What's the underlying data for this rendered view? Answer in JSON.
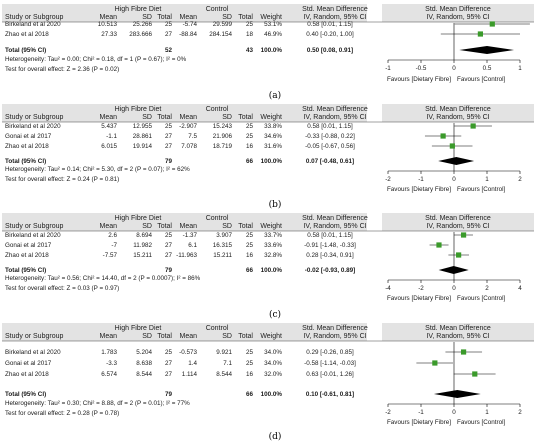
{
  "chart_data": [
    {
      "type": "table",
      "panel_label": "(a)",
      "group_headers": [
        "High Fibre Diet",
        "Control",
        "Std. Mean Difference",
        "Std. Mean Difference"
      ],
      "column_headers": [
        "Study or Subgroup",
        "Mean",
        "SD",
        "Total",
        "Mean",
        "SD",
        "Total",
        "Weight",
        "IV, Random, 95% CI",
        "IV, Random, 95% CI"
      ],
      "studies": [
        {
          "study": "Birkeland et al 2020",
          "mean1": "10.513",
          "sd1": "25.266",
          "n1": "25",
          "mean2": "-5.74",
          "sd2": "29.599",
          "n2": "25",
          "weight": "53.1%",
          "ci_text": "0.58 [0.01, 1.15]",
          "smd": 0.58,
          "lo": 0.01,
          "hi": 1.15
        },
        {
          "study": "Zhao et al 2018",
          "mean1": "27.33",
          "sd1": "283.666",
          "n1": "27",
          "mean2": "-88.84",
          "sd2": "284.154",
          "n2": "18",
          "weight": "46.9%",
          "ci_text": "0.40 [-0.20, 1.00]",
          "smd": 0.4,
          "lo": -0.2,
          "hi": 1.0
        }
      ],
      "total": {
        "label": "Total (95% CI)",
        "n1": "52",
        "n2": "43",
        "weight": "100.0%",
        "ci_text": "0.50 [0.08, 0.91]",
        "smd": 0.5,
        "lo": 0.08,
        "hi": 0.91
      },
      "heterogeneity": "Heterogeneity: Tau² = 0.00; Chi² = 0.18, df = 1 (P = 0.67); I² = 0%",
      "overall_effect": "Test for overall effect: Z = 2.36 (P = 0.02)",
      "xlim": [
        -1,
        1
      ],
      "ticks": [
        -1,
        -0.5,
        0,
        0.5,
        1
      ],
      "tick_labels": [
        "-1",
        "-0.5",
        "0",
        "0.5",
        "1"
      ],
      "favours_left": "Favours [Dietary Fibre]",
      "favours_right": "Favours [Control]"
    },
    {
      "type": "table",
      "panel_label": "(b)",
      "group_headers": [
        "High Fibre Diet",
        "Control",
        "Std. Mean Difference",
        "Std. Mean Difference"
      ],
      "column_headers": [
        "Study or Subgroup",
        "Mean",
        "SD",
        "Total",
        "Mean",
        "SD",
        "Total",
        "Weight",
        "IV, Random, 95% CI",
        "IV, Random, 95% CI"
      ],
      "studies": [
        {
          "study": "Birkeland et al 2020",
          "mean1": "5.437",
          "sd1": "12.955",
          "n1": "25",
          "mean2": "-2.907",
          "sd2": "15.243",
          "n2": "25",
          "weight": "33.8%",
          "ci_text": "0.58 [0.01, 1.15]",
          "smd": 0.58,
          "lo": 0.01,
          "hi": 1.15
        },
        {
          "study": "Gonai et al 2017",
          "mean1": "-1.1",
          "sd1": "28.861",
          "n1": "27",
          "mean2": "7.5",
          "sd2": "21.906",
          "n2": "25",
          "weight": "34.6%",
          "ci_text": "-0.33 [-0.88, 0.22]",
          "smd": -0.33,
          "lo": -0.88,
          "hi": 0.22
        },
        {
          "study": "Zhao et al 2018",
          "mean1": "6.015",
          "sd1": "19.914",
          "n1": "27",
          "mean2": "7.078",
          "sd2": "18.719",
          "n2": "16",
          "weight": "31.6%",
          "ci_text": "-0.05 [-0.67, 0.56]",
          "smd": -0.05,
          "lo": -0.67,
          "hi": 0.56
        }
      ],
      "total": {
        "label": "Total (95% CI)",
        "n1": "79",
        "n2": "66",
        "weight": "100.0%",
        "ci_text": "0.07 [-0.48, 0.61]",
        "smd": 0.07,
        "lo": -0.48,
        "hi": 0.61
      },
      "heterogeneity": "Heterogeneity: Tau² = 0.14; Chi² = 5.30, df = 2 (P = 0.07); I² = 62%",
      "overall_effect": "Test for overall effect: Z = 0.24 (P = 0.81)",
      "xlim": [
        -2,
        2
      ],
      "ticks": [
        -2,
        -1,
        0,
        1,
        2
      ],
      "tick_labels": [
        "-2",
        "-1",
        "0",
        "1",
        "2"
      ],
      "favours_left": "Favours [Dietary Fibre]",
      "favours_right": "Favours [Control]"
    },
    {
      "type": "table",
      "panel_label": "(c)",
      "group_headers": [
        "High Fibre Diet",
        "Control",
        "Std. Mean Difference",
        "Std. Mean Difference"
      ],
      "column_headers": [
        "Study or Subgroup",
        "Mean",
        "SD",
        "Total",
        "Mean",
        "SD",
        "Total",
        "Weight",
        "IV, Random, 95% CI",
        "IV, Random, 95% CI"
      ],
      "studies": [
        {
          "study": "Birkeland et al 2020",
          "mean1": "2.6",
          "sd1": "8.694",
          "n1": "25",
          "mean2": "-1.37",
          "sd2": "3.907",
          "n2": "25",
          "weight": "33.7%",
          "ci_text": "0.58 [0.01, 1.15]",
          "smd": 0.58,
          "lo": 0.01,
          "hi": 1.15
        },
        {
          "study": "Gonai et al 2017",
          "mean1": "-7",
          "sd1": "11.982",
          "n1": "27",
          "mean2": "6.1",
          "sd2": "16.315",
          "n2": "25",
          "weight": "33.6%",
          "ci_text": "-0.91 [-1.48, -0.33]",
          "smd": -0.91,
          "lo": -1.48,
          "hi": -0.33
        },
        {
          "study": "Zhao et al 2018",
          "mean1": "-7.57",
          "sd1": "15.211",
          "n1": "27",
          "mean2": "-11.963",
          "sd2": "15.211",
          "n2": "16",
          "weight": "32.8%",
          "ci_text": "0.28 [-0.34, 0.91]",
          "smd": 0.28,
          "lo": -0.34,
          "hi": 0.91
        }
      ],
      "total": {
        "label": "Total (95% CI)",
        "n1": "79",
        "n2": "66",
        "weight": "100.0%",
        "ci_text": "-0.02 [-0.93, 0.89]",
        "smd": -0.02,
        "lo": -0.93,
        "hi": 0.89
      },
      "heterogeneity": "Heterogeneity: Tau² = 0.56; Chi² = 14.40, df = 2 (P = 0.0007); I² = 86%",
      "overall_effect": "Test for overall effect: Z = 0.03 (P = 0.97)",
      "xlim": [
        -4,
        4
      ],
      "ticks": [
        -4,
        -2,
        0,
        2,
        4
      ],
      "tick_labels": [
        "-4",
        "-2",
        "0",
        "2",
        "4"
      ],
      "favours_left": "Favours [Dietary Fibre]",
      "favours_right": "Favours [Control]"
    },
    {
      "type": "table",
      "panel_label": "(d)",
      "group_headers": [
        "High Fibre Diet",
        "Control",
        "Std. Mean Difference",
        "Std. Mean Difference"
      ],
      "column_headers": [
        "Study or Subgroup",
        "Mean",
        "SD",
        "Total",
        "Mean",
        "SD",
        "Total",
        "Weight",
        "IV, Random, 95% CI",
        "IV, Random, 95% CI"
      ],
      "studies": [
        {
          "study": "Birkeland et al 2020",
          "mean1": "1.783",
          "sd1": "5.204",
          "n1": "25",
          "mean2": "-0.573",
          "sd2": "9.921",
          "n2": "25",
          "weight": "34.0%",
          "ci_text": "0.29 [-0.26, 0.85]",
          "smd": 0.29,
          "lo": -0.26,
          "hi": 0.85
        },
        {
          "study": "Gonai et al 2017",
          "mean1": "-3.3",
          "sd1": "8.638",
          "n1": "27",
          "mean2": "1.4",
          "sd2": "7.1",
          "n2": "25",
          "weight": "34.0%",
          "ci_text": "-0.58 [-1.14, -0.03]",
          "smd": -0.58,
          "lo": -1.14,
          "hi": -0.03
        },
        {
          "study": "Zhao et al 2018",
          "mean1": "6.574",
          "sd1": "8.544",
          "n1": "27",
          "mean2": "1.114",
          "sd2": "8.544",
          "n2": "16",
          "weight": "32.0%",
          "ci_text": "0.63 [-0.01, 1.26]",
          "smd": 0.63,
          "lo": -0.01,
          "hi": 1.26
        }
      ],
      "total": {
        "label": "Total (95% CI)",
        "n1": "79",
        "n2": "66",
        "weight": "100.0%",
        "ci_text": "0.10 [-0.61, 0.81]",
        "smd": 0.1,
        "lo": -0.61,
        "hi": 0.81
      },
      "heterogeneity": "Heterogeneity: Tau² = 0.30; Chi² = 8.88, df = 2 (P = 0.01); I² = 77%",
      "overall_effect": "Test for overall effect: Z = 0.28 (P = 0.78)",
      "xlim": [
        -2,
        2
      ],
      "ticks": [
        -2,
        -1,
        0,
        1,
        2
      ],
      "tick_labels": [
        "-2",
        "-1",
        "0",
        "1",
        "2"
      ],
      "favours_left": "Favours [Dietary Fibre]",
      "favours_right": "Favours [Control]"
    }
  ],
  "colors": {
    "square": "#3a9a2a",
    "diamond": "#000000",
    "header_bg": "#e3e3e3",
    "rule": "#444444"
  }
}
